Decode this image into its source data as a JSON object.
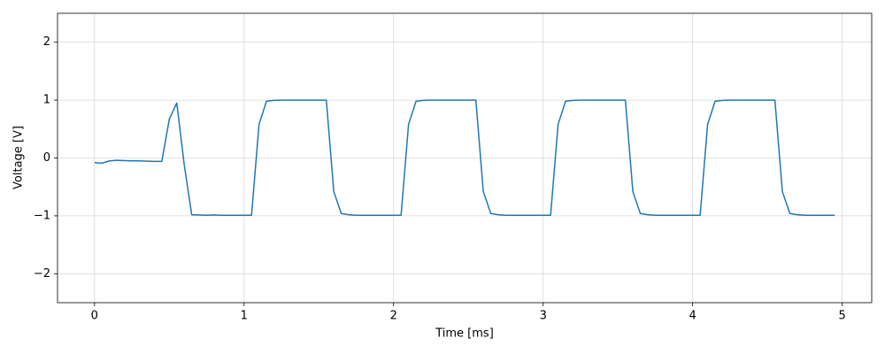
{
  "chart_data": {
    "type": "line",
    "x_label": "Time [ms]",
    "y_label": "Voltage [V]",
    "x": [
      0,
      0.05,
      0.1,
      0.15,
      0.2,
      0.25,
      0.3,
      0.35,
      0.4,
      0.45,
      0.5,
      0.55,
      0.6,
      0.65,
      0.7,
      0.75,
      0.8,
      0.85,
      0.9,
      0.95,
      1.0,
      1.05,
      1.1,
      1.15,
      1.2,
      1.25,
      1.3,
      1.35,
      1.4,
      1.45,
      1.5,
      1.55,
      1.6,
      1.65,
      1.7,
      1.75,
      1.8,
      1.85,
      1.9,
      1.95,
      2.0,
      2.05,
      2.1,
      2.15,
      2.2,
      2.25,
      2.3,
      2.35,
      2.4,
      2.45,
      2.5,
      2.55,
      2.6,
      2.65,
      2.7,
      2.75,
      2.8,
      2.85,
      2.9,
      2.95,
      3.0,
      3.05,
      3.1,
      3.15,
      3.2,
      3.25,
      3.3,
      3.35,
      3.4,
      3.45,
      3.5,
      3.55,
      3.6,
      3.65,
      3.7,
      3.75,
      3.8,
      3.85,
      3.9,
      3.95,
      4.0,
      4.05,
      4.1,
      4.15,
      4.2,
      4.25,
      4.3,
      4.35,
      4.4,
      4.45,
      4.5,
      4.55,
      4.6,
      4.65,
      4.7,
      4.75,
      4.8,
      4.85,
      4.9,
      4.95
    ],
    "series": [
      {
        "color": "#1f77b4",
        "values": [
          -0.08,
          -0.09,
          -0.05,
          -0.04,
          -0.045,
          -0.05,
          -0.05,
          -0.055,
          -0.06,
          -0.06,
          0.67,
          0.95,
          -0.12,
          -0.98,
          -0.985,
          -0.99,
          -0.985,
          -0.99,
          -0.99,
          -0.99,
          -0.99,
          -0.99,
          0.58,
          0.98,
          0.995,
          1.0,
          1.0,
          1.0,
          1.0,
          1.0,
          1.0,
          1.0,
          -0.58,
          -0.96,
          -0.98,
          -0.99,
          -0.99,
          -0.99,
          -0.99,
          -0.99,
          -0.99,
          -0.99,
          0.58,
          0.98,
          0.995,
          1.0,
          1.0,
          1.0,
          1.0,
          1.0,
          1.0,
          1.0,
          -0.58,
          -0.96,
          -0.98,
          -0.99,
          -0.99,
          -0.99,
          -0.99,
          -0.99,
          -0.99,
          -0.99,
          0.58,
          0.98,
          0.995,
          1.0,
          1.0,
          1.0,
          1.0,
          1.0,
          1.0,
          1.0,
          -0.58,
          -0.96,
          -0.98,
          -0.99,
          -0.99,
          -0.99,
          -0.99,
          -0.99,
          -0.99,
          -0.99,
          0.58,
          0.98,
          0.995,
          1.0,
          1.0,
          1.0,
          1.0,
          1.0,
          1.0,
          1.0,
          -0.58,
          -0.96,
          -0.98,
          -0.99,
          -0.99,
          -0.99,
          -0.99,
          -0.99
        ]
      }
    ],
    "xlim": [
      -0.2475,
      5.1975
    ],
    "ylim": [
      -2.5,
      2.5
    ],
    "xticks": [
      0,
      1,
      2,
      3,
      4,
      5
    ],
    "yticks": [
      {
        "value": -2,
        "label": "−2"
      },
      {
        "value": -1,
        "label": "−1"
      },
      0,
      1,
      2
    ],
    "grid": true
  }
}
